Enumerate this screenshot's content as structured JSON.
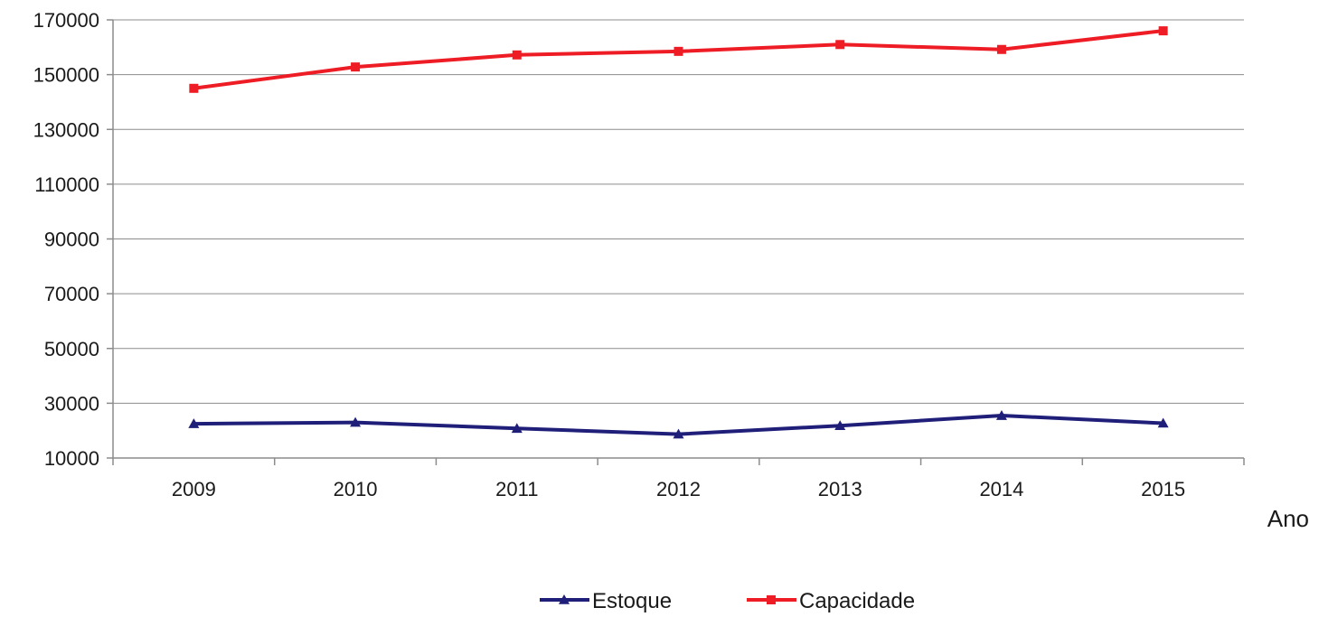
{
  "chart_data": {
    "type": "line",
    "title": "",
    "xlabel": "Ano",
    "ylabel": "",
    "categories": [
      "2009",
      "2010",
      "2011",
      "2012",
      "2013",
      "2014",
      "2015"
    ],
    "ylim": [
      10000,
      170000
    ],
    "yticks": [
      "10000",
      "30000",
      "50000",
      "70000",
      "90000",
      "110000",
      "130000",
      "150000",
      "170000"
    ],
    "grid": true,
    "legend_position": "bottom",
    "series": [
      {
        "name": "Estoque",
        "color": "#1f1f7a",
        "marker": "triangle",
        "values": [
          22500,
          23000,
          20800,
          18700,
          21800,
          25500,
          22700
        ]
      },
      {
        "name": "Capacidade",
        "color": "#ee1c25",
        "marker": "square",
        "values": [
          145000,
          152800,
          157200,
          158500,
          161000,
          159200,
          166000
        ]
      }
    ]
  }
}
